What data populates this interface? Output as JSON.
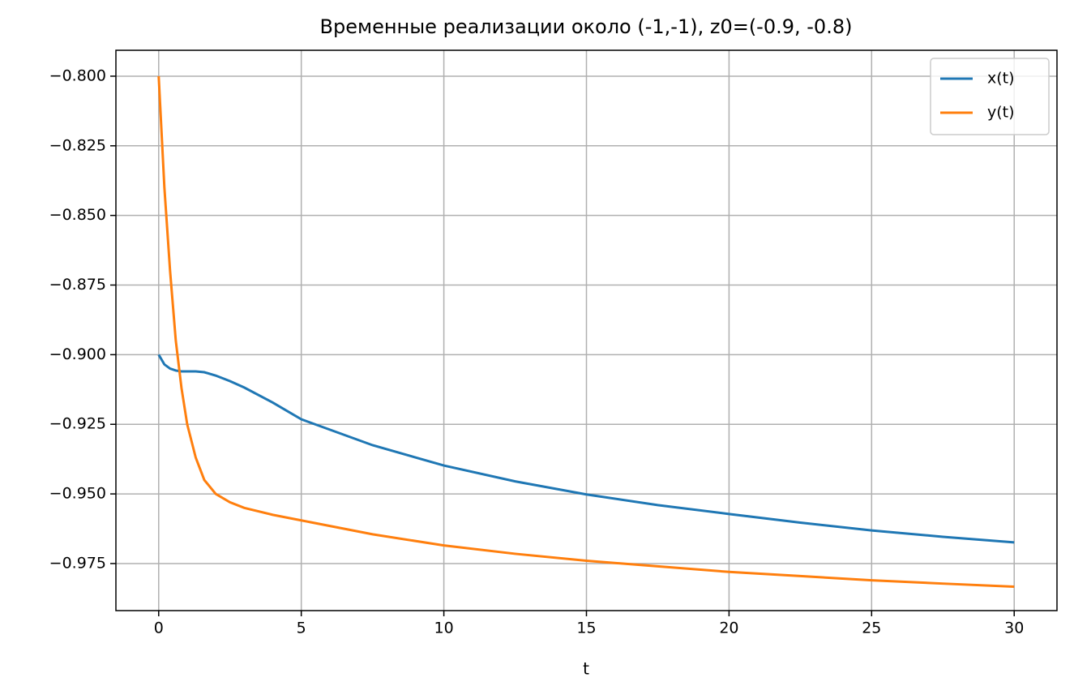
{
  "chart_data": {
    "type": "line",
    "title": "Временные реализации около (-1,-1), z0=(-0.9, -0.8)",
    "x_label": "t",
    "x": [
      0,
      0.2,
      0.4,
      0.6,
      0.8,
      1,
      1.3,
      1.6,
      2,
      2.5,
      3,
      4,
      5,
      7.5,
      10,
      12.5,
      15,
      17.5,
      20,
      22.5,
      25,
      27.5,
      30
    ],
    "series": [
      {
        "name": "x(t)",
        "color": "#1f77b4",
        "values": [
          -0.9,
          -0.9035,
          -0.905,
          -0.9057,
          -0.906,
          -0.906,
          -0.906,
          -0.9063,
          -0.9075,
          -0.9095,
          -0.9118,
          -0.9172,
          -0.9232,
          -0.9325,
          -0.9398,
          -0.9455,
          -0.9502,
          -0.954,
          -0.9572,
          -0.9603,
          -0.9631,
          -0.9654,
          -0.9674
        ]
      },
      {
        "name": "y(t)",
        "color": "#ff7f0e",
        "values": [
          -0.8,
          -0.84,
          -0.87,
          -0.895,
          -0.912,
          -0.925,
          -0.937,
          -0.945,
          -0.95,
          -0.953,
          -0.955,
          -0.9575,
          -0.9595,
          -0.9645,
          -0.9685,
          -0.9715,
          -0.974,
          -0.976,
          -0.978,
          -0.9795,
          -0.981,
          -0.9822,
          -0.9833
        ]
      }
    ],
    "xlim": [
      -1.5,
      31.5
    ],
    "xticks": [
      0,
      5,
      10,
      15,
      20,
      25,
      30
    ],
    "ylim": [
      -0.9919,
      -0.7907
    ],
    "yticks": [
      {
        "value": -0.8,
        "label": "−0.800"
      },
      {
        "value": -0.825,
        "label": "−0.825"
      },
      {
        "value": -0.85,
        "label": "−0.850"
      },
      {
        "value": -0.875,
        "label": "−0.875"
      },
      {
        "value": -0.9,
        "label": "−0.900"
      },
      {
        "value": -0.925,
        "label": "−0.925"
      },
      {
        "value": -0.95,
        "label": "−0.950"
      },
      {
        "value": -0.975,
        "label": "−0.975"
      }
    ],
    "grid": true,
    "legend": "upper right"
  }
}
